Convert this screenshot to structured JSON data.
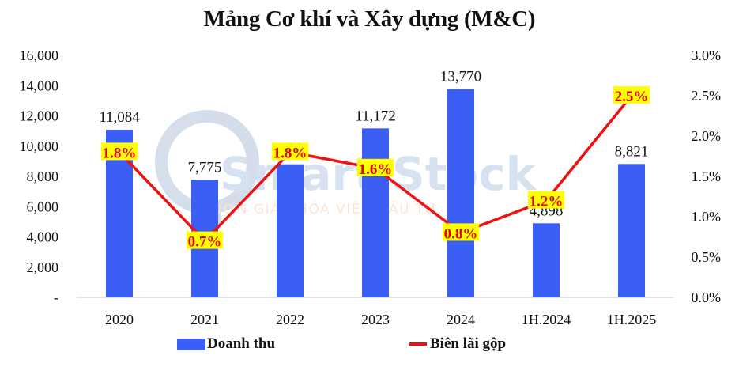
{
  "chart_data": {
    "type": "bar+line",
    "title": "Mảng Cơ khí và Xây dựng (M&C)",
    "categories": [
      "2020",
      "2021",
      "2022",
      "2023",
      "2024",
      "1H.2024",
      "1H.2025"
    ],
    "series": [
      {
        "name": "Doanh thu",
        "type": "bar",
        "axis": "left",
        "color": "#3B5EF5",
        "values": [
          11084,
          7775,
          8800,
          11172,
          13770,
          4898,
          8821
        ],
        "labels": [
          "11,084",
          "7,775",
          "",
          "11,172",
          "13,770",
          "4,898",
          "8,821"
        ],
        "note": "2022 value label hidden behind margin label; value estimated from bar height"
      },
      {
        "name": "Biên lãi gộp",
        "type": "line",
        "axis": "right",
        "color": "#EE1111",
        "values": [
          1.8,
          0.7,
          1.8,
          1.6,
          0.8,
          1.2,
          2.5
        ],
        "labels": [
          "1.8%",
          "0.7%",
          "1.8%",
          "1.6%",
          "0.8%",
          "1.2%",
          "2.5%"
        ],
        "label_background": "#FFFF00",
        "label_color": "#E00000"
      }
    ],
    "y_left": {
      "ylim": [
        0,
        16000
      ],
      "ticks": [
        "-",
        "2,000",
        "4,000",
        "6,000",
        "8,000",
        "10,000",
        "12,000",
        "14,000",
        "16,000"
      ]
    },
    "y_right": {
      "ylim": [
        0,
        3.0
      ],
      "ticks": [
        "0.0%",
        "0.5%",
        "1.0%",
        "1.5%",
        "2.0%",
        "2.5%",
        "3.0%"
      ]
    },
    "xlabel": "",
    "ylabel": "",
    "grid": false,
    "legend_position": "bottom"
  },
  "legend": {
    "bar_label": "Doanh thu",
    "line_label": "Biên lãi gộp"
  },
  "watermark": {
    "brand": "Smart Stock",
    "tagline": "ĐƠN GIẢN HÓA VIỆC ĐẦU TƯ"
  }
}
